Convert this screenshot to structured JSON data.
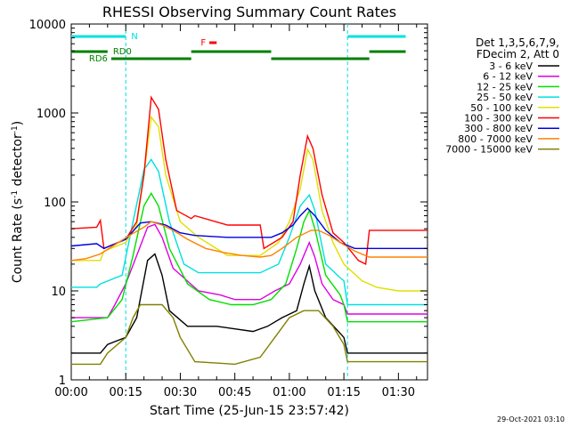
{
  "chart_data": {
    "type": "line",
    "title": "RHESSI Observing Summary Count Rates",
    "xlabel": "Start Time (25-Jun-15 23:57:42)",
    "ylabel_parts": [
      "Count Rate (s",
      "-1",
      " detector",
      "-1",
      ")"
    ],
    "yscale": "log",
    "ylim": [
      1,
      10000
    ],
    "xlim_minutes": [
      0,
      98
    ],
    "x_ticks": [
      {
        "m": 0,
        "label": "00:00"
      },
      {
        "m": 15,
        "label": "00:15"
      },
      {
        "m": 30,
        "label": "00:30"
      },
      {
        "m": 45,
        "label": "00:45"
      },
      {
        "m": 60,
        "label": "01:00"
      },
      {
        "m": 75,
        "label": "01:15"
      },
      {
        "m": 90,
        "label": "01:30"
      }
    ],
    "y_ticks": [
      {
        "v": 1,
        "label": "1"
      },
      {
        "v": 10,
        "label": "10"
      },
      {
        "v": 100,
        "label": "100"
      },
      {
        "v": 1000,
        "label": "1000"
      },
      {
        "v": 10000,
        "label": "10000"
      }
    ],
    "legend": {
      "header": [
        "Det 1,3,5,6,7,9,",
        "FDecim 2, Att 0"
      ],
      "placement": "right"
    },
    "series": [
      {
        "name": "3 - 6 keV",
        "color": "#000000",
        "points": [
          [
            0,
            2
          ],
          [
            8,
            2
          ],
          [
            10,
            2.5
          ],
          [
            15,
            3
          ],
          [
            18,
            5
          ],
          [
            21,
            22
          ],
          [
            23,
            26
          ],
          [
            25,
            15
          ],
          [
            27,
            6
          ],
          [
            32,
            4
          ],
          [
            40,
            4
          ],
          [
            50,
            3.5
          ],
          [
            54,
            4
          ],
          [
            58,
            5
          ],
          [
            62,
            6
          ],
          [
            64,
            12
          ],
          [
            65.5,
            19
          ],
          [
            67,
            10
          ],
          [
            70,
            5
          ],
          [
            75,
            3
          ],
          [
            76,
            2
          ],
          [
            98,
            2
          ]
        ]
      },
      {
        "name": "6 - 12 keV",
        "color": "#e000e0",
        "points": [
          [
            0,
            5
          ],
          [
            10,
            5
          ],
          [
            12,
            7
          ],
          [
            15,
            12
          ],
          [
            18,
            25
          ],
          [
            21,
            52
          ],
          [
            23,
            56
          ],
          [
            25,
            40
          ],
          [
            28,
            18
          ],
          [
            35,
            10
          ],
          [
            41,
            9
          ],
          [
            45,
            8
          ],
          [
            52,
            8
          ],
          [
            56,
            10
          ],
          [
            60,
            12
          ],
          [
            63,
            20
          ],
          [
            65.5,
            35
          ],
          [
            67,
            24
          ],
          [
            69,
            12
          ],
          [
            72,
            8
          ],
          [
            75,
            7
          ],
          [
            76,
            5.5
          ],
          [
            98,
            5.5
          ]
        ]
      },
      {
        "name": "12 - 25 keV",
        "color": "#00e000",
        "points": [
          [
            0,
            4.5
          ],
          [
            10,
            5
          ],
          [
            14,
            8
          ],
          [
            17,
            25
          ],
          [
            20,
            90
          ],
          [
            22,
            125
          ],
          [
            24,
            90
          ],
          [
            27,
            30
          ],
          [
            32,
            12
          ],
          [
            38,
            8
          ],
          [
            44,
            7
          ],
          [
            50,
            7
          ],
          [
            55,
            8
          ],
          [
            59,
            12
          ],
          [
            62,
            30
          ],
          [
            64,
            60
          ],
          [
            65.5,
            80
          ],
          [
            67,
            50
          ],
          [
            70,
            15
          ],
          [
            74,
            9
          ],
          [
            75,
            7
          ],
          [
            76,
            4.5
          ],
          [
            98,
            4.5
          ]
        ]
      },
      {
        "name": "25 - 50 keV",
        "color": "#00e0e0",
        "points": [
          [
            0,
            11
          ],
          [
            7,
            11
          ],
          [
            8,
            12
          ],
          [
            14,
            15
          ],
          [
            17,
            60
          ],
          [
            20,
            230
          ],
          [
            22,
            300
          ],
          [
            24,
            220
          ],
          [
            27,
            60
          ],
          [
            31,
            20
          ],
          [
            35,
            16
          ],
          [
            45,
            16
          ],
          [
            52,
            16
          ],
          [
            57,
            20
          ],
          [
            60,
            40
          ],
          [
            63,
            90
          ],
          [
            65.5,
            120
          ],
          [
            67,
            80
          ],
          [
            70,
            20
          ],
          [
            74,
            14
          ],
          [
            75,
            13
          ],
          [
            76,
            7
          ],
          [
            98,
            7
          ]
        ]
      },
      {
        "name": "50 - 100 keV",
        "color": "#e0e000",
        "points": [
          [
            0,
            22
          ],
          [
            8,
            22
          ],
          [
            9,
            28
          ],
          [
            15,
            35
          ],
          [
            18,
            55
          ],
          [
            20,
            200
          ],
          [
            22,
            900
          ],
          [
            24,
            700
          ],
          [
            26,
            200
          ],
          [
            30,
            60
          ],
          [
            35,
            40
          ],
          [
            43,
            25
          ],
          [
            52,
            25
          ],
          [
            57,
            35
          ],
          [
            60,
            60
          ],
          [
            63,
            140
          ],
          [
            65,
            390
          ],
          [
            66.5,
            300
          ],
          [
            69,
            80
          ],
          [
            72,
            35
          ],
          [
            75,
            20
          ],
          [
            80,
            13
          ],
          [
            84,
            11
          ],
          [
            90,
            10
          ],
          [
            98,
            10
          ]
        ]
      },
      {
        "name": "100 - 300 keV",
        "color": "#ff0000",
        "points": [
          [
            0,
            50
          ],
          [
            7,
            52
          ],
          [
            8,
            62
          ],
          [
            9,
            30
          ],
          [
            15,
            38
          ],
          [
            18,
            60
          ],
          [
            20,
            200
          ],
          [
            22,
            1500
          ],
          [
            24,
            1100
          ],
          [
            26,
            300
          ],
          [
            29,
            80
          ],
          [
            33,
            65
          ],
          [
            34,
            70
          ],
          [
            43,
            55
          ],
          [
            52,
            55
          ],
          [
            53,
            30
          ],
          [
            58,
            40
          ],
          [
            61,
            60
          ],
          [
            63,
            200
          ],
          [
            65,
            550
          ],
          [
            66.5,
            400
          ],
          [
            69,
            120
          ],
          [
            72,
            45
          ],
          [
            75,
            35
          ],
          [
            79,
            22
          ],
          [
            81,
            20
          ],
          [
            82,
            48
          ],
          [
            90,
            48
          ],
          [
            98,
            48
          ]
        ]
      },
      {
        "name": "300 - 800 keV",
        "color": "#0000e0",
        "points": [
          [
            0,
            32
          ],
          [
            7,
            34
          ],
          [
            9,
            30
          ],
          [
            15,
            38
          ],
          [
            19,
            58
          ],
          [
            22,
            60
          ],
          [
            26,
            55
          ],
          [
            30,
            45
          ],
          [
            34,
            42
          ],
          [
            43,
            40
          ],
          [
            52,
            40
          ],
          [
            55,
            40
          ],
          [
            58,
            45
          ],
          [
            61,
            55
          ],
          [
            63,
            70
          ],
          [
            65,
            85
          ],
          [
            67,
            70
          ],
          [
            70,
            48
          ],
          [
            74,
            35
          ],
          [
            78,
            30
          ],
          [
            82,
            30
          ],
          [
            90,
            30
          ],
          [
            98,
            30
          ]
        ]
      },
      {
        "name": "800 - 7000 keV",
        "color": "#ff8000",
        "points": [
          [
            0,
            22
          ],
          [
            4,
            23
          ],
          [
            8,
            26
          ],
          [
            12,
            33
          ],
          [
            16,
            42
          ],
          [
            20,
            52
          ],
          [
            22,
            60
          ],
          [
            25,
            55
          ],
          [
            28,
            48
          ],
          [
            32,
            38
          ],
          [
            37,
            30
          ],
          [
            42,
            27
          ],
          [
            47,
            25
          ],
          [
            52,
            24
          ],
          [
            55,
            25
          ],
          [
            58,
            30
          ],
          [
            62,
            40
          ],
          [
            66,
            48
          ],
          [
            68,
            48
          ],
          [
            71,
            42
          ],
          [
            74,
            35
          ],
          [
            78,
            28
          ],
          [
            82,
            24
          ],
          [
            90,
            24
          ],
          [
            98,
            24
          ]
        ]
      },
      {
        "name": "7000 - 15000 keV",
        "color": "#808000",
        "points": [
          [
            0,
            1.5
          ],
          [
            8,
            1.5
          ],
          [
            10,
            2
          ],
          [
            15,
            3
          ],
          [
            17,
            5
          ],
          [
            19,
            7
          ],
          [
            25,
            7
          ],
          [
            28,
            5
          ],
          [
            30,
            3
          ],
          [
            34,
            1.6
          ],
          [
            45,
            1.5
          ],
          [
            52,
            1.8
          ],
          [
            56,
            3
          ],
          [
            60,
            5
          ],
          [
            64,
            6
          ],
          [
            68,
            6
          ],
          [
            72,
            4
          ],
          [
            75,
            2.5
          ],
          [
            76,
            1.6
          ],
          [
            90,
            1.6
          ],
          [
            98,
            1.6
          ]
        ]
      }
    ],
    "state_bars": [
      {
        "label": "N",
        "color": "#00e0e0",
        "segments": [
          [
            0,
            15
          ],
          [
            76,
            92
          ]
        ]
      },
      {
        "label": "F",
        "color": "#ff0000",
        "segments": [
          [
            38,
            40
          ]
        ]
      },
      {
        "label": "RD0",
        "color": "#008000",
        "segments": [
          [
            0,
            10
          ],
          [
            33,
            55
          ],
          [
            82,
            92
          ]
        ]
      },
      {
        "label": "RD6",
        "color": "#008000",
        "segments": [
          [
            11,
            33
          ],
          [
            55,
            82
          ]
        ]
      }
    ],
    "attenuator_markers_minutes": [
      15,
      76
    ],
    "timestamp": "29-Oct-2021 03:10"
  }
}
